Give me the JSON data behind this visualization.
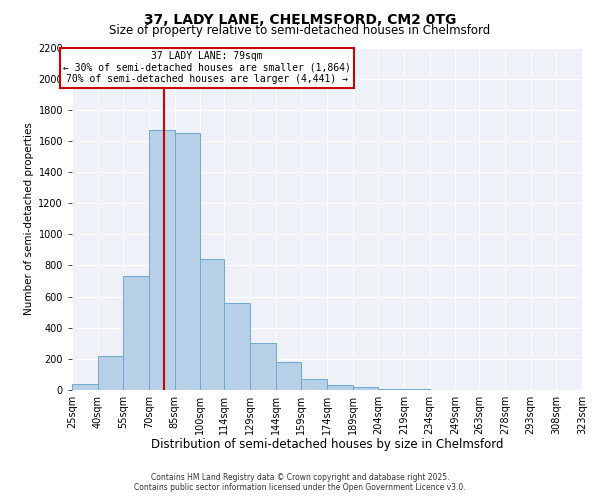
{
  "title": "37, LADY LANE, CHELMSFORD, CM2 0TG",
  "subtitle": "Size of property relative to semi-detached houses in Chelmsford",
  "xlabel": "Distribution of semi-detached houses by size in Chelmsford",
  "ylabel": "Number of semi-detached properties",
  "bar_values": [
    40,
    220,
    730,
    1670,
    1650,
    840,
    560,
    300,
    180,
    70,
    35,
    20,
    5,
    5,
    0,
    0,
    0,
    0,
    0,
    0
  ],
  "all_xlabels": [
    "25sqm",
    "40sqm",
    "55sqm",
    "70sqm",
    "85sqm",
    "100sqm",
    "114sqm",
    "129sqm",
    "144sqm",
    "159sqm",
    "174sqm",
    "189sqm",
    "204sqm",
    "219sqm",
    "234sqm",
    "249sqm",
    "263sqm",
    "278sqm",
    "293sqm",
    "308sqm",
    "323sqm"
  ],
  "bar_color": "#b8cfe8",
  "bar_edge_color": "#6fa8d0",
  "bar_bins": [
    25,
    40,
    55,
    70,
    85,
    100,
    114,
    129,
    144,
    159,
    174,
    189,
    204,
    219,
    234,
    249,
    263,
    278,
    293,
    308,
    323
  ],
  "property_size": 79,
  "property_line_color": "#cc0000",
  "ylim": [
    0,
    2200
  ],
  "yticks": [
    0,
    200,
    400,
    600,
    800,
    1000,
    1200,
    1400,
    1600,
    1800,
    2000,
    2200
  ],
  "annotation_title": "37 LADY LANE: 79sqm",
  "annotation_line1": "← 30% of semi-detached houses are smaller (1,864)",
  "annotation_line2": "70% of semi-detached houses are larger (4,441) →",
  "annotation_box_color": "#cc0000",
  "background_color": "#eef2f8",
  "footer1": "Contains HM Land Registry data © Crown copyright and database right 2025.",
  "footer2": "Contains public sector information licensed under the Open Government Licence v3.0.",
  "title_fontsize": 10,
  "subtitle_fontsize": 8.5,
  "xlabel_fontsize": 8.5,
  "ylabel_fontsize": 7.5,
  "tick_fontsize": 7,
  "annot_fontsize": 7
}
